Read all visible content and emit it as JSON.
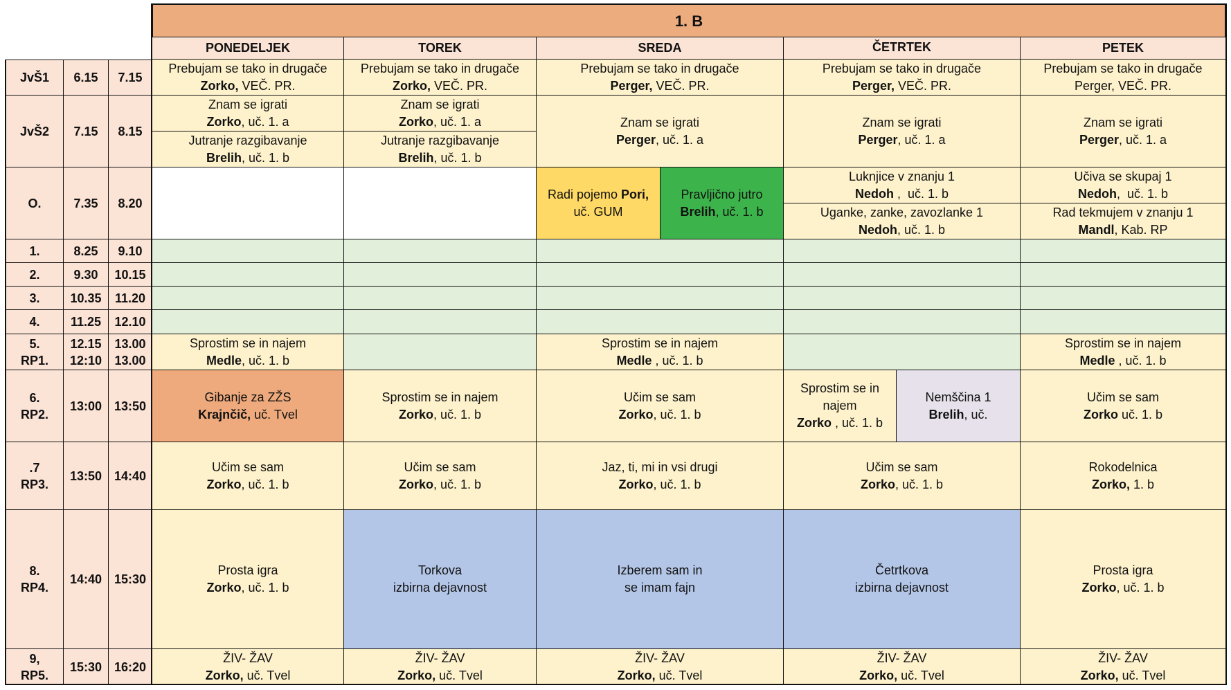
{
  "title": "1. B",
  "days": [
    "PONEDELJEK",
    "TOREK",
    "SREDA",
    "ČETRTEK",
    "PETEK"
  ],
  "rows": [
    {
      "label": "JvŠ1",
      "start": "6.15",
      "end": "7.15"
    },
    {
      "label": "JvŠ2",
      "start": "7.15",
      "end": "8.15"
    },
    {
      "label": "O.",
      "start": "7.35",
      "end": "8.20"
    },
    {
      "label": "1.",
      "start": "8.25",
      "end": "9.10"
    },
    {
      "label": "2.",
      "start": "9.30",
      "end": "10.15"
    },
    {
      "label": "3.",
      "start": "10.35",
      "end": "11.20"
    },
    {
      "label": "4.",
      "start": "11.25",
      "end": "12.10"
    },
    {
      "label": "5.",
      "label2": "RP1.",
      "start": "12.15",
      "start2": "12:10",
      "end": "13.00",
      "end2": "13.00"
    },
    {
      "label": "6.",
      "label2": "RP2.",
      "start": "13:00",
      "end": "13:50"
    },
    {
      "label": ".7",
      "label2": "RP3.",
      "start": "13:50",
      "end": "14:40"
    },
    {
      "label": "8.",
      "label2": "RP4.",
      "start": "14:40",
      "end": "15:30"
    },
    {
      "label": "9,",
      "label2": "RP5.",
      "start": "15:30",
      "end": "16:20"
    }
  ],
  "cells": {
    "mon_jvs1": {
      "l1": "Prebujam se tako in drugače",
      "bold": "Zorko,",
      "rest": " VEČ. PR."
    },
    "tue_jvs1": {
      "l1": "Prebujam se tako in drugače",
      "bold": "Zorko,",
      "rest": " VEČ. PR."
    },
    "wed_jvs1": {
      "l1": "Prebujam se tako in drugače",
      "bold": "Perger,",
      "rest": " VEČ. PR."
    },
    "thu_jvs1": {
      "l1": "Prebujam se tako in drugače",
      "bold": "Perger,",
      "rest": " VEČ. PR."
    },
    "fri_jvs1": {
      "l1": "Prebujam se tako in drugače",
      "l2": "Perger, VEČ. PR."
    },
    "mon_jvs2a": {
      "l1": "Znam se igrati",
      "bold": "Zorko",
      "rest": ", uč. 1. a"
    },
    "mon_jvs2b": {
      "l1": "Jutranje razgibavanje",
      "bold": "Brelih",
      "rest": ", uč. 1. b"
    },
    "tue_jvs2a": {
      "l1": "Znam se igrati",
      "bold": "Zorko",
      "rest": ", uč. 1. a"
    },
    "tue_jvs2b": {
      "l1": "Jutranje razgibavanje",
      "bold": "Brelih",
      "rest": ", uč. 1. b"
    },
    "wed_jvs2": {
      "l1": "Znam se igrati",
      "bold": "Perger",
      "rest": ", uč. 1. a"
    },
    "thu_jvs2": {
      "l1": "Znam se igrati",
      "bold": "Perger",
      "rest": ", uč. 1. a"
    },
    "fri_jvs2": {
      "l1": "Znam se igrati",
      "bold": "Perger",
      "rest": ", uč. 1. a"
    },
    "wed_o_a": {
      "pre": "Radi pojemo ",
      "bold": "Pori,",
      "l2": "uč. GUM"
    },
    "wed_o_b": {
      "l1": "Pravljično jutro",
      "bold": "Brelih",
      "rest": ", uč. 1. b"
    },
    "thu_o_a": {
      "l1": "Luknjice v znanju 1",
      "bold": "Nedoh",
      "rest": " ,  uč. 1. b"
    },
    "thu_o_b": {
      "l1": "Uganke, zanke, zavozlanke 1",
      "bold": "Nedoh",
      "rest": ", uč. 1. b"
    },
    "fri_o_a": {
      "l1": "Učiva se skupaj 1",
      "bold": "Nedoh",
      "rest": ",  uč. 1. b"
    },
    "fri_o_b": {
      "l1": "Rad tekmujem v znanju 1",
      "bold": "Mandl",
      "rest": ", Kab. RP"
    },
    "mon_5": {
      "l1": "Sprostim se in najem",
      "bold": "Medle",
      "rest": ", uč. 1. b"
    },
    "wed_5": {
      "l1": "Sprostim se in najem",
      "bold": "Medle",
      "rest": " , uč. 1. b"
    },
    "fri_5": {
      "l1": "Sprostim se in najem",
      "bold": "Medle",
      "rest": " , uč. 1. b"
    },
    "mon_6": {
      "l1": "Gibanje za ZŽS",
      "bold": "Krajnčič,",
      "rest": " uč. Tvel"
    },
    "tue_6": {
      "l1": "Sprostim se in najem",
      "bold": "Zorko",
      "rest": ", uč. 1. b"
    },
    "wed_6": {
      "l1": "Učim se sam",
      "bold": "Zorko",
      "rest": ", uč. 1. b"
    },
    "thu_6a": {
      "l1": "Sprostim se in",
      "l2": "najem",
      "bold": "Zorko",
      "rest": " , uč. 1. b"
    },
    "thu_6b": {
      "l1": "Nemščina 1",
      "bold": "Brelih",
      "rest": ", uč."
    },
    "fri_6": {
      "l1": "Učim se sam",
      "bold": "Zorko",
      "rest": " uč. 1. b"
    },
    "mon_7": {
      "l1": "Učim se sam",
      "bold": "Zorko",
      "rest": ", uč. 1. b"
    },
    "tue_7": {
      "l1": "Učim se sam",
      "bold": "Zorko",
      "rest": ", uč. 1. b"
    },
    "wed_7": {
      "l1": "Jaz, ti, mi in vsi drugi",
      "bold": "Zorko",
      "rest": ", uč. 1. b"
    },
    "thu_7": {
      "l1": "Učim se sam",
      "bold": "Zorko",
      "rest": ", uč. 1. b"
    },
    "fri_7": {
      "l1": "Rokodelnica",
      "bold": "Zorko,",
      "rest": " 1. b"
    },
    "mon_8": {
      "l1": "Prosta igra",
      "bold": "Zorko",
      "rest": ", uč. 1. b"
    },
    "tue_8": {
      "l1": "Torkova",
      "l2": "izbirna dejavnost"
    },
    "wed_8": {
      "l1": "Izberem sam in",
      "l2": "se imam fajn"
    },
    "thu_8": {
      "l1": "Četrtkova",
      "l2": "izbirna dejavnost"
    },
    "fri_8": {
      "l1": "Prosta igra",
      "bold": "Zorko",
      "rest": ", uč. 1. b"
    },
    "mon_9": {
      "l1": "ŽIV- ŽAV",
      "bold": "Zorko,",
      "rest": " uč. Tvel"
    },
    "tue_9": {
      "l1": "ŽIV- ŽAV",
      "bold": "Zorko,",
      "rest": " uč. Tvel"
    },
    "wed_9": {
      "l1": "ŽIV- ŽAV",
      "bold": "Zorko,",
      "rest": " uč. Tvel"
    },
    "thu_9": {
      "l1": "ŽIV- ŽAV",
      "bold": "Zorko,",
      "rest": " uč. Tvel"
    },
    "fri_9": {
      "l1": "ŽIV- ŽAV",
      "bold": "Zorko,",
      "rest": " uč. Tvel"
    }
  },
  "colors": {
    "header_orange": "#EDAC7E",
    "peach": "#FBE3D6",
    "cream": "#FEF2CC",
    "light_green": "#E2EFDA",
    "yellow": "#FFD966",
    "green": "#3CB44B",
    "orange_cell": "#EEAA7C",
    "lavender": "#E6E1EA",
    "blue": "#B4C6E7",
    "white": "#FFFFFF"
  }
}
